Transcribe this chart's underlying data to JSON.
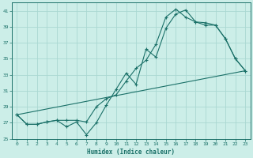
{
  "xlabel": "Humidex (Indice chaleur)",
  "bg_color": "#cceee8",
  "grid_color": "#aad8d2",
  "line_color": "#1a7068",
  "xlim": [
    -0.5,
    23.5
  ],
  "ylim": [
    25,
    42
  ],
  "xticks": [
    0,
    1,
    2,
    3,
    4,
    5,
    6,
    7,
    8,
    9,
    10,
    11,
    12,
    13,
    14,
    15,
    16,
    17,
    18,
    19,
    20,
    21,
    22,
    23
  ],
  "yticks": [
    25,
    27,
    29,
    31,
    33,
    35,
    37,
    39,
    41
  ],
  "line1_x": [
    0,
    1,
    2,
    3,
    4,
    5,
    6,
    7,
    8,
    9,
    10,
    11,
    12,
    13,
    14,
    15,
    16,
    17,
    18,
    19,
    20,
    21,
    22,
    23
  ],
  "line1_y": [
    28.0,
    26.8,
    26.8,
    27.1,
    27.3,
    26.5,
    27.1,
    25.5,
    27.0,
    29.2,
    31.2,
    33.2,
    31.8,
    36.2,
    35.2,
    38.8,
    40.6,
    41.1,
    39.6,
    39.2,
    39.2,
    37.5,
    35.0,
    33.5
  ],
  "line2_x": [
    0,
    1,
    2,
    3,
    4,
    5,
    6,
    7,
    8,
    9,
    10,
    11,
    12,
    13,
    14,
    15,
    16,
    17,
    18,
    19,
    20,
    21,
    22,
    23
  ],
  "line2_y": [
    28.0,
    26.8,
    26.8,
    27.1,
    27.3,
    27.3,
    27.3,
    27.1,
    29.0,
    30.0,
    30.5,
    32.2,
    33.8,
    34.8,
    36.8,
    40.2,
    41.2,
    40.2,
    39.6,
    39.5,
    39.2,
    37.5,
    35.0,
    33.5
  ],
  "line3_x": [
    0,
    23
  ],
  "line3_y": [
    28.0,
    33.5
  ]
}
